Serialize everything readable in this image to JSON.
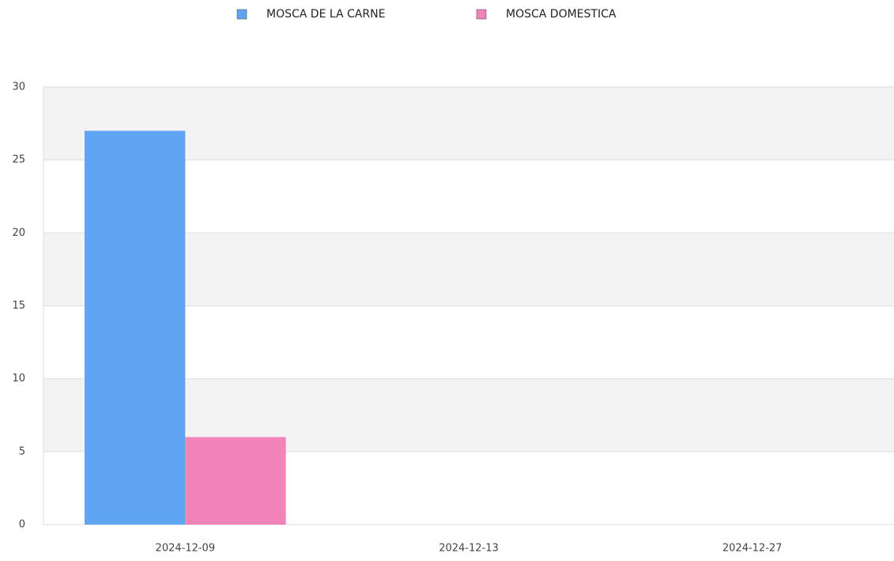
{
  "chart_data": {
    "type": "bar",
    "categories": [
      "2024-12-09",
      "2024-12-13",
      "2024-12-27"
    ],
    "series": [
      {
        "name": "MOSCA DE LA CARNE",
        "color": "#60a5f4",
        "values": [
          27,
          0,
          0
        ]
      },
      {
        "name": "MOSCA DOMESTICA",
        "color": "#f283b9",
        "values": [
          6,
          0,
          0
        ]
      }
    ],
    "ylim": [
      0,
      30
    ],
    "yticks": [
      0,
      5,
      10,
      15,
      20,
      25,
      30
    ],
    "grid": true,
    "legend": "top"
  }
}
